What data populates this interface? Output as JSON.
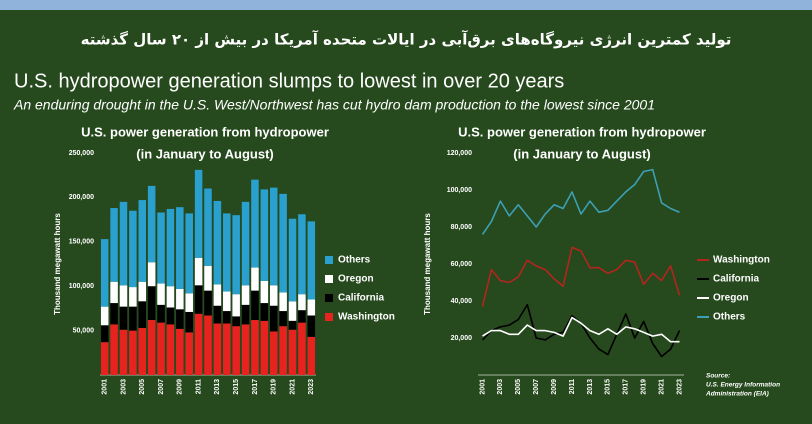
{
  "header": {
    "persian_title": "تولید کمترین انرژی نیروگاه‌های برق‌آبی در ایالات متحده آمریکا در بیش از ۲۰ سال گذشته",
    "title": "U.S. hydropower generation slumps to lowest in over 20 years",
    "subtitle": "An enduring drought in the U.S. West/Northwest has cut hydro dam production to the lowest since 2001"
  },
  "source": [
    "Source:",
    "U.S. Energy Information",
    "Administration (EIA)"
  ],
  "chart_data": [
    {
      "type": "bar",
      "stacked": true,
      "title": "U.S. power generation from hydropower",
      "subtitle": "(in January to August)",
      "ylabel": "Thousand megawatt hours",
      "categories": [
        "2001",
        null,
        "2003",
        null,
        "2005",
        null,
        "2007",
        null,
        "2009",
        null,
        "2011",
        null,
        "2013",
        null,
        "2015",
        null,
        "2017",
        null,
        "2019",
        null,
        "2021",
        null,
        "2023"
      ],
      "ylim": [
        0,
        250000
      ],
      "yticks": [
        {
          "value": 50000,
          "label": "50,000"
        },
        {
          "value": 100000,
          "label": "100,000"
        },
        {
          "value": 150000,
          "label": "150,000"
        },
        {
          "value": 200000,
          "label": "200,000"
        },
        {
          "value": 250000,
          "label": "250,000"
        }
      ],
      "series": [
        {
          "name": "Washington",
          "color": "#e8231f",
          "values": [
            37000,
            57000,
            51000,
            50000,
            53000,
            62000,
            59000,
            57000,
            52000,
            48000,
            69000,
            67000,
            58000,
            58000,
            55000,
            57000,
            62000,
            61000,
            49000,
            55000,
            51000,
            59000,
            43000
          ]
        },
        {
          "name": "California",
          "color": "#000000",
          "values": [
            19000,
            24000,
            26000,
            27000,
            30000,
            38000,
            20000,
            19000,
            22000,
            23000,
            32000,
            28000,
            20000,
            14000,
            11000,
            22000,
            33000,
            20000,
            29000,
            17000,
            10000,
            14000,
            24000
          ]
        },
        {
          "name": "Oregon",
          "color": "#ffffff",
          "values": [
            21000,
            24000,
            24000,
            22000,
            22000,
            27000,
            24000,
            24000,
            23000,
            21000,
            31000,
            28000,
            24000,
            22000,
            25000,
            22000,
            26000,
            25000,
            23000,
            21000,
            22000,
            18000,
            18000
          ]
        },
        {
          "name": "Others",
          "color": "#2aa0cf",
          "values": [
            76000,
            83000,
            94000,
            86000,
            92000,
            86000,
            80000,
            87000,
            92000,
            90000,
            99000,
            87000,
            94000,
            88000,
            89000,
            94000,
            99000,
            103000,
            110000,
            111000,
            93000,
            90000,
            88000
          ]
        }
      ]
    },
    {
      "type": "line",
      "title": "U.S. power generation from hydropower",
      "subtitle": "(in January to August)",
      "ylabel": "Thousand megawatt hours",
      "categories": [
        "2001",
        null,
        "2003",
        null,
        "2005",
        null,
        "2007",
        null,
        "2009",
        null,
        "2011",
        null,
        "2013",
        null,
        "2015",
        null,
        "2017",
        null,
        "2019",
        null,
        "2021",
        null,
        "2023"
      ],
      "ylim": [
        0,
        120000
      ],
      "yticks": [
        {
          "value": 20000,
          "label": "20,000"
        },
        {
          "value": 40000,
          "label": "40,000"
        },
        {
          "value": 60000,
          "label": "60,000"
        },
        {
          "value": 80000,
          "label": "80,000"
        },
        {
          "value": 100000,
          "label": "100,000"
        },
        {
          "value": 120000,
          "label": "120,000"
        }
      ],
      "series": [
        {
          "name": "Washington",
          "color": "#b3261e",
          "values": [
            37000,
            57000,
            51000,
            50000,
            53000,
            62000,
            59000,
            57000,
            52000,
            48000,
            69000,
            67000,
            58000,
            58000,
            55000,
            57000,
            62000,
            61000,
            49000,
            55000,
            51000,
            59000,
            43000
          ]
        },
        {
          "name": "California",
          "color": "#000000",
          "values": [
            19000,
            24000,
            26000,
            27000,
            30000,
            38000,
            20000,
            19000,
            22000,
            23000,
            32000,
            28000,
            20000,
            14000,
            11000,
            22000,
            33000,
            20000,
            29000,
            17000,
            10000,
            14000,
            24000
          ]
        },
        {
          "name": "Oregon",
          "color": "#ffffff",
          "values": [
            21000,
            24000,
            24000,
            22000,
            22000,
            27000,
            24000,
            24000,
            23000,
            21000,
            31000,
            28000,
            24000,
            22000,
            25000,
            22000,
            26000,
            25000,
            23000,
            21000,
            22000,
            18000,
            18000
          ]
        },
        {
          "name": "Others",
          "color": "#3d9fb5",
          "values": [
            76000,
            83000,
            94000,
            86000,
            92000,
            86000,
            80000,
            87000,
            92000,
            90000,
            99000,
            87000,
            94000,
            88000,
            89000,
            94000,
            99000,
            103000,
            110000,
            111000,
            93000,
            90000,
            88000
          ]
        }
      ]
    }
  ]
}
